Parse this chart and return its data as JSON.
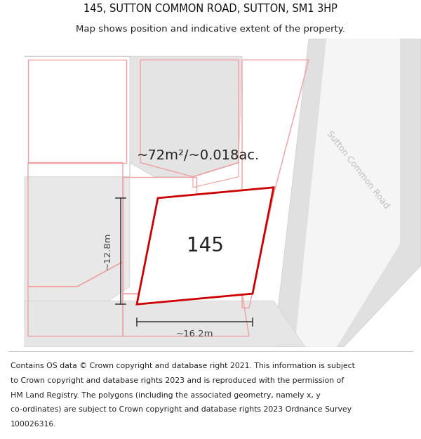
{
  "title_line1": "145, SUTTON COMMON ROAD, SUTTON, SM1 3HP",
  "title_line2": "Map shows position and indicative extent of the property.",
  "footer_lines": [
    "Contains OS data © Crown copyright and database right 2021. This information is subject",
    "to Crown copyright and database rights 2023 and is reproduced with the permission of",
    "HM Land Registry. The polygons (including the associated geometry, namely x, y",
    "co-ordinates) are subject to Crown copyright and database rights 2023 Ordnance Survey",
    "100026316."
  ],
  "area_label": "~72m²/~0.018ac.",
  "number_label": "145",
  "dim_width": "~16.2m",
  "dim_height": "~12.8m",
  "road_label": "Sutton Common Road",
  "bg_color": "#ffffff",
  "gray_fill": "#e2e2e2",
  "light_gray_fill": "#ebebeb",
  "road_fill": "#e0e0e0",
  "parcel_edge": "#f0a0a0",
  "highlight_edge": "#cc0000",
  "highlight_fill": "#ffffff",
  "dim_color": "#444444",
  "road_label_color": "#c0c0c0",
  "title_fontsize": 10.5,
  "subtitle_fontsize": 9.5,
  "footer_fontsize": 7.8,
  "area_fontsize": 14,
  "number_fontsize": 20,
  "dim_fontsize": 9.5
}
